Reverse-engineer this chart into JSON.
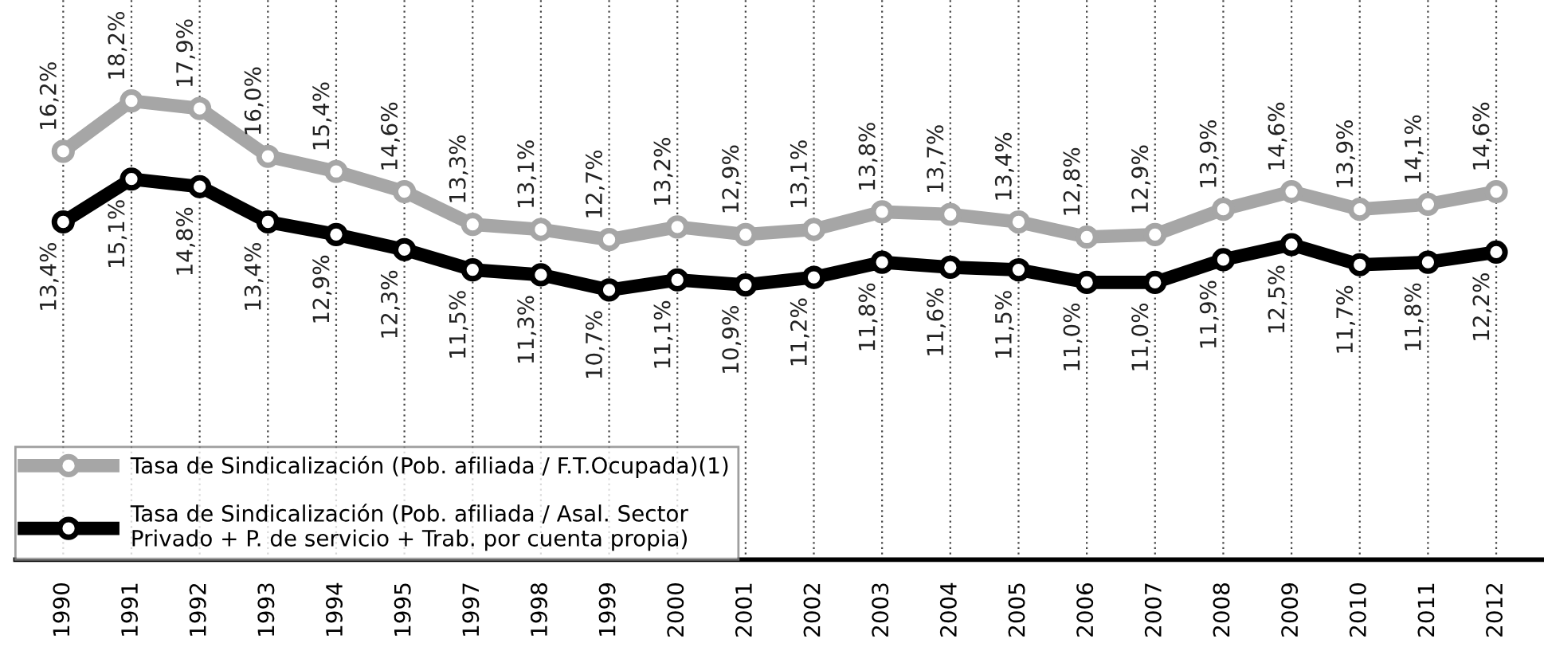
{
  "chart_data": {
    "type": "line",
    "categories": [
      "1990",
      "1991",
      "1992",
      "1993",
      "1994",
      "1995",
      "1997",
      "1998",
      "1999",
      "2000",
      "2001",
      "2002",
      "2003",
      "2004",
      "2005",
      "2006",
      "2007",
      "2008",
      "2009",
      "2010",
      "2011",
      "2012"
    ],
    "series": [
      {
        "name": "Tasa de Sindicalización (Pob. afiliada / F.T.Ocupada)(1)",
        "color": "#a6a6a6",
        "values": [
          16.2,
          18.2,
          17.9,
          16.0,
          15.4,
          14.6,
          13.3,
          13.1,
          12.7,
          13.2,
          12.9,
          13.1,
          13.8,
          13.7,
          13.4,
          12.8,
          12.9,
          13.9,
          14.6,
          13.9,
          14.1,
          14.6
        ],
        "value_labels": [
          "16,2%",
          "18,2%",
          "17,9%",
          "16,0%",
          "15,4%",
          "14,6%",
          "13,3%",
          "13,1%",
          "12,7%",
          "13,2%",
          "12,9%",
          "13,1%",
          "13,8%",
          "13,7%",
          "13,4%",
          "12,8%",
          "12,9%",
          "13,9%",
          "14,6%",
          "13,9%",
          "14,1%",
          "14,6%"
        ]
      },
      {
        "name": "Tasa de Sindicalización (Pob. afiliada / Asal. Sector Privado + P. de servicio + Trab. por cuenta propia)",
        "color": "#000000",
        "values": [
          13.4,
          15.1,
          14.8,
          13.4,
          12.9,
          12.3,
          11.5,
          11.3,
          10.7,
          11.1,
          10.9,
          11.2,
          11.8,
          11.6,
          11.5,
          11.0,
          11.0,
          11.9,
          12.5,
          11.7,
          11.8,
          12.2
        ],
        "value_labels": [
          "13,4%",
          "15,1%",
          "14,8%",
          "13,4%",
          "12,9%",
          "12,3%",
          "11,5%",
          "11,3%",
          "10,7%",
          "11,1%",
          "10,9%",
          "11,2%",
          "11,8%",
          "11,6%",
          "11,5%",
          "11,0%",
          "11,0%",
          "11,9%",
          "12,5%",
          "11,7%",
          "11,8%",
          "12,2%"
        ]
      }
    ],
    "marker": "circle",
    "grid": "x",
    "legend": "bottom left",
    "tick_labels": "x"
  }
}
